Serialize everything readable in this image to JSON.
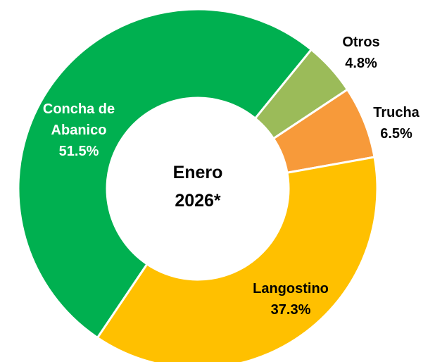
{
  "chart_data": {
    "type": "donut",
    "center_label": [
      "Enero",
      "2026*"
    ],
    "categories": [
      "Otros",
      "Trucha",
      "Langostino",
      "Concha de Abanico"
    ],
    "values": [
      4.8,
      6.5,
      37.3,
      51.5
    ],
    "value_labels": [
      "4.8%",
      "6.5%",
      "37.3%",
      "51.5%"
    ],
    "colors": [
      "#9bbb59",
      "#f79a3a",
      "#ffc000",
      "#00b050"
    ]
  }
}
